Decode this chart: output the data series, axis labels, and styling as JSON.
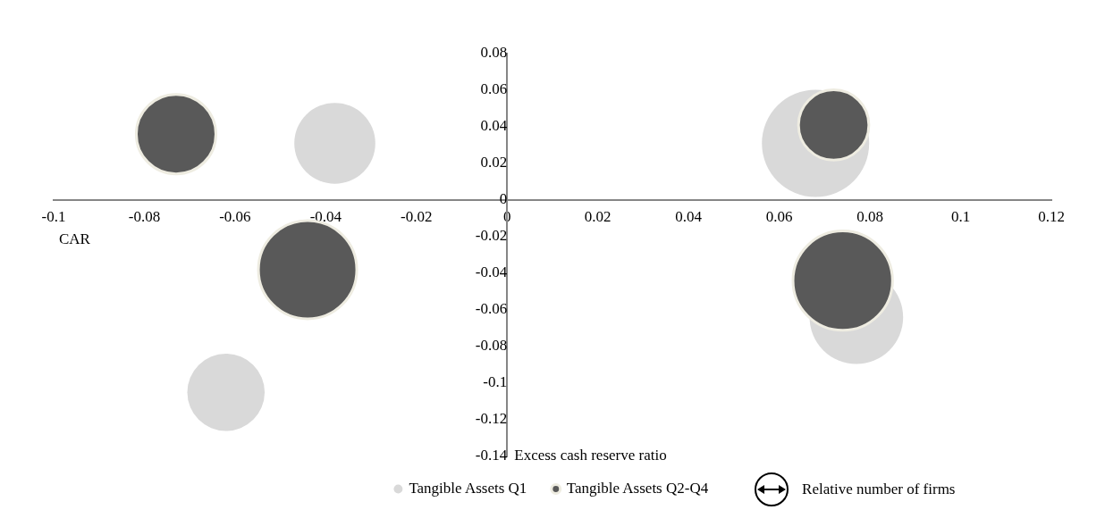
{
  "chart_data": {
    "type": "bubble",
    "xlabel": "Excess cash reserve ratio",
    "ylabel": "CAR",
    "xlim": [
      -0.1,
      0.12
    ],
    "xticks": [
      -0.1,
      -0.08,
      -0.06,
      -0.04,
      -0.02,
      0,
      0.02,
      0.04,
      0.06,
      0.08,
      0.1,
      0.12
    ],
    "ylim": [
      -0.14,
      0.08
    ],
    "yticks": [
      -0.14,
      -0.12,
      -0.1,
      -0.08,
      -0.06,
      -0.04,
      -0.02,
      0,
      0.02,
      0.04,
      0.06,
      0.08
    ],
    "grid": false,
    "legend": "bottom",
    "annotations": [
      "Relative number of firms"
    ],
    "series": [
      {
        "name": "Tangible Assets Q1",
        "color": "#d9d9d9",
        "x": [
          -0.038,
          -0.062,
          0.068,
          0.077
        ],
        "values": [
          0.031,
          -0.105,
          0.031,
          -0.064
        ],
        "sizes": [
          0.57,
          0.52,
          1,
          0.76
        ]
      },
      {
        "name": "Tangible Assets Q2-Q4",
        "color": "#595959",
        "x": [
          -0.073,
          -0.044,
          0.072,
          0.074
        ],
        "values": [
          0.036,
          -0.038,
          0.041,
          -0.044
        ],
        "sizes": [
          0.55,
          0.84,
          0.43,
          0.86
        ]
      }
    ]
  }
}
